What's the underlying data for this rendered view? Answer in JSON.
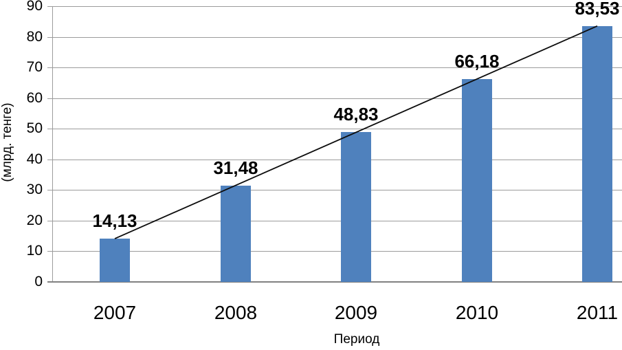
{
  "chart_data": {
    "type": "bar",
    "categories": [
      "2007",
      "2008",
      "2009",
      "2010",
      "2011"
    ],
    "values": [
      14.13,
      31.48,
      48.83,
      66.18,
      83.53
    ],
    "value_labels": [
      "14,13",
      "31,48",
      "48,83",
      "66,18",
      "83,53"
    ],
    "title": "",
    "xlabel": "Период",
    "ylabel": "(млрд. тенге)",
    "ylim": [
      0,
      90
    ],
    "ytick_step": 10,
    "ytick_labels": [
      "0",
      "10",
      "20",
      "30",
      "40",
      "50",
      "60",
      "70",
      "80",
      "90"
    ],
    "grid": true,
    "legend": false,
    "trendline": {
      "from_index": 0,
      "to_index": 4
    },
    "colors": {
      "bar": "#4F81BD",
      "gridline": "#9B9B9B",
      "axis": "#808080",
      "trend": "#0d0d0d",
      "text": "#000000"
    }
  }
}
